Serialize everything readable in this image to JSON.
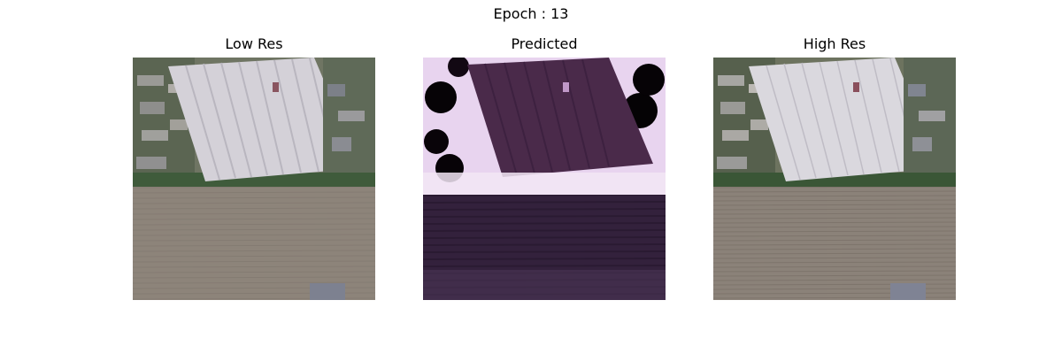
{
  "figure": {
    "title": "Epoch : 13",
    "panels": [
      {
        "title": "Low Res",
        "image": "satellite-low-res"
      },
      {
        "title": "Predicted",
        "image": "satellite-predicted"
      },
      {
        "title": "High Res",
        "image": "satellite-high-res"
      }
    ]
  }
}
